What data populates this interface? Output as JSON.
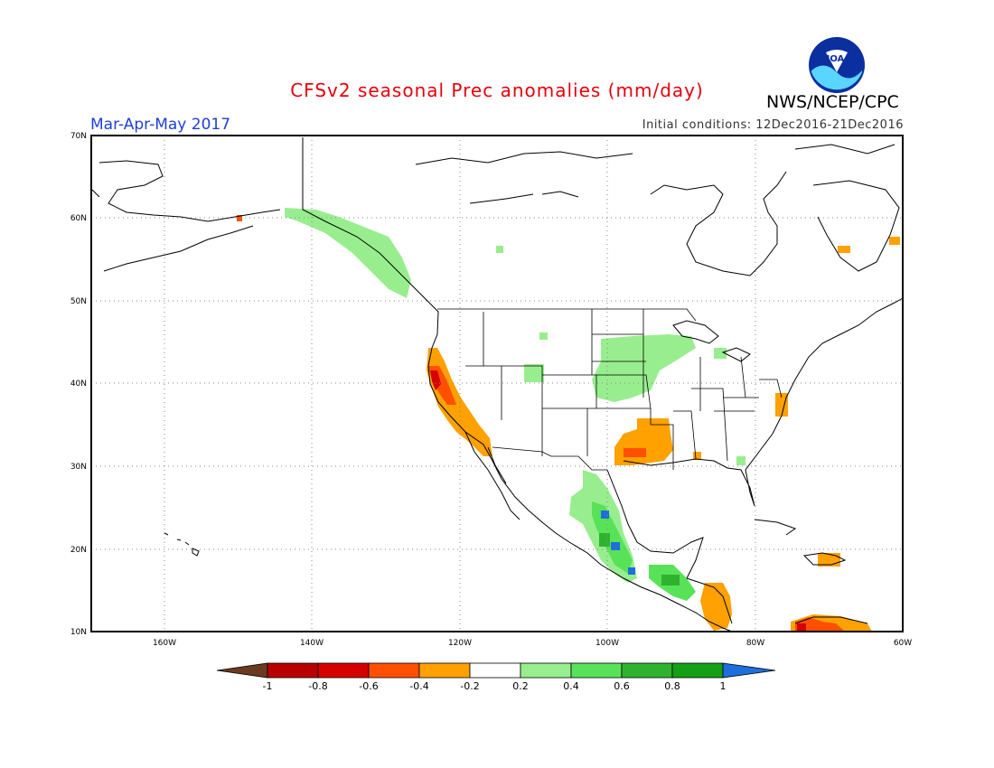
{
  "header": {
    "title": "CFSv2 seasonal Prec anomalies (mm/day)",
    "season": "Mar-Apr-May 2017",
    "initial_conditions": "Initial conditions: 12Dec2016-21Dec2016",
    "agency": "NWS/NCEP/CPC",
    "logo_text": "NOAA"
  },
  "map": {
    "lat_labels": [
      "70N",
      "60N",
      "50N",
      "40N",
      "30N",
      "20N",
      "10N"
    ],
    "lon_labels": [
      "160W",
      "140W",
      "120W",
      "100W",
      "80W",
      "60W"
    ],
    "lat_range": [
      10,
      70
    ],
    "lon_range": [
      -170,
      -60
    ]
  },
  "colorbar": {
    "labels": [
      "-1",
      "-0.8",
      "-0.6",
      "-0.4",
      "-0.2",
      "0.2",
      "0.4",
      "0.6",
      "0.8",
      "1"
    ],
    "colors": [
      "#6b3a1f",
      "#b80000",
      "#d60000",
      "#ff4f00",
      "#ffa100",
      "#ffffff",
      "#98ee8e",
      "#58e258",
      "#2fb32f",
      "#14a014",
      "#1e6edc"
    ]
  }
}
